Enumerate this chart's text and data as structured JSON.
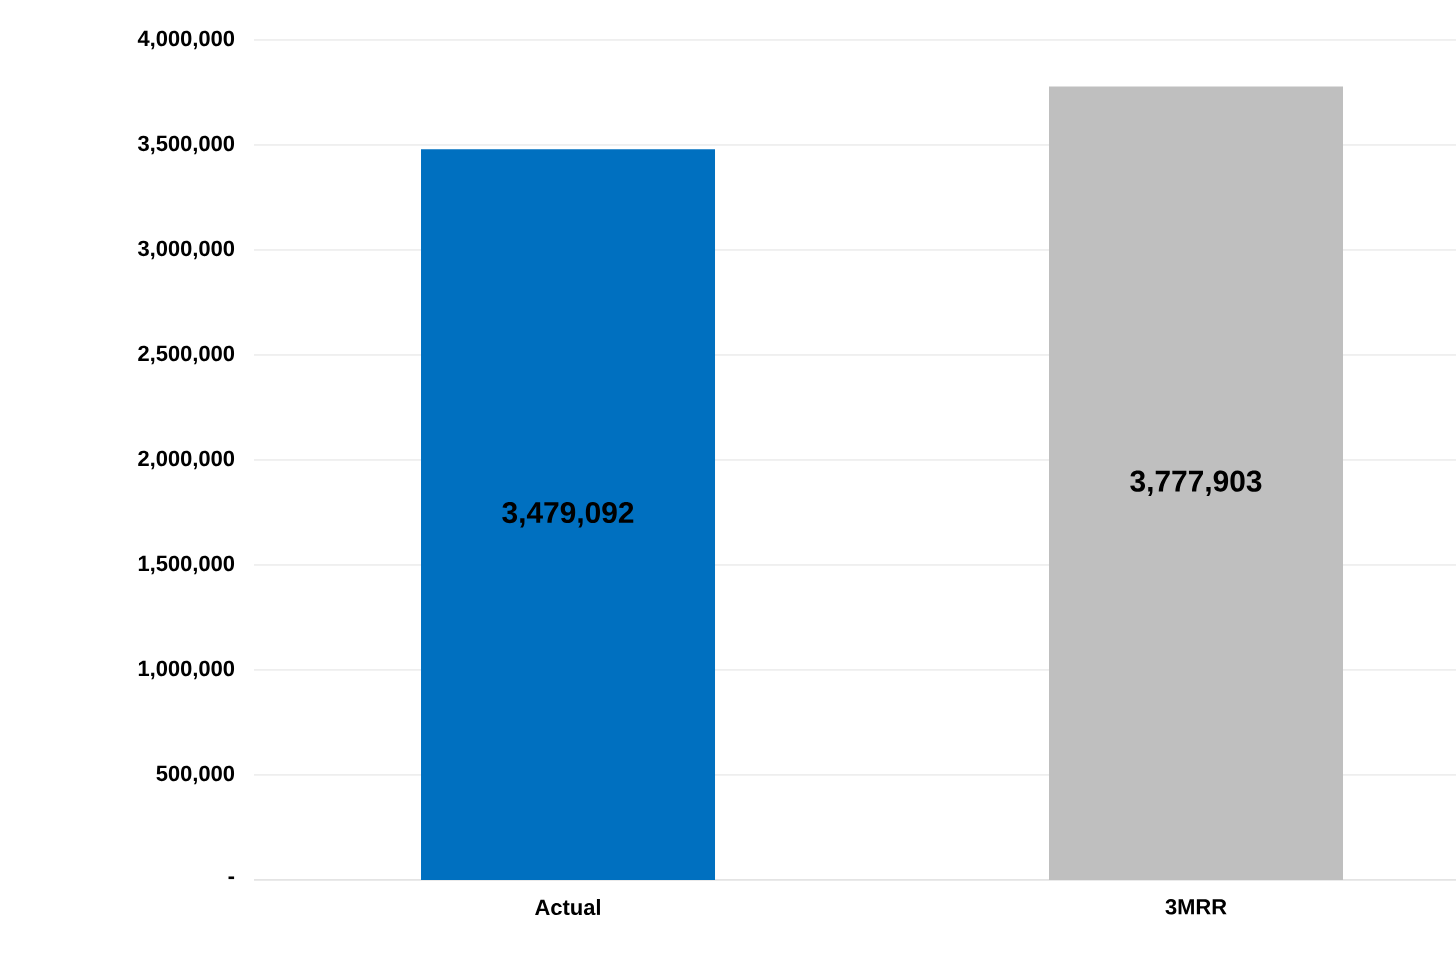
{
  "chart_data": {
    "type": "bar",
    "categories": [
      "Actual",
      "3MRR"
    ],
    "values": [
      3479092,
      3777903
    ],
    "colors": [
      "#0070c0",
      "#bfbfbf"
    ],
    "value_labels": [
      "3,479,092",
      "3,777,903"
    ],
    "ylim": [
      0,
      4000000
    ],
    "yticks": [
      {
        "value": 0,
        "label": "-"
      },
      {
        "value": 500000,
        "label": "500,000"
      },
      {
        "value": 1000000,
        "label": "1,000,000"
      },
      {
        "value": 1500000,
        "label": "1,500,000"
      },
      {
        "value": 2000000,
        "label": "2,000,000"
      },
      {
        "value": 2500000,
        "label": "2,500,000"
      },
      {
        "value": 3000000,
        "label": "3,000,000"
      },
      {
        "value": 3500000,
        "label": "3,500,000"
      },
      {
        "value": 4000000,
        "label": "4,000,000"
      }
    ],
    "grid": "y"
  }
}
